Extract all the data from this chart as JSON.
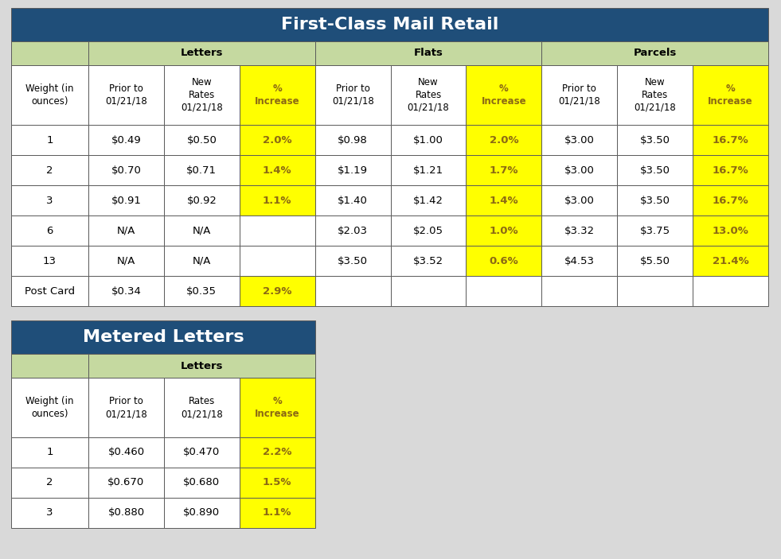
{
  "title1": "First-Class Mail Retail",
  "title2": "Metered Letters",
  "header_bg": "#1F4E79",
  "header_text_color": "#FFFFFF",
  "subheader_bg": "#C5D9A0",
  "yellow_bg": "#FFFF00",
  "yellow_text": "#8B6914",
  "white_bg": "#FFFFFF",
  "outer_bg": "#D9D9D9",
  "border_color": "#5A5A5A",
  "table1_data": [
    [
      "1",
      "$0.49",
      "$0.50",
      "2.0%",
      "$0.98",
      "$1.00",
      "2.0%",
      "$3.00",
      "$3.50",
      "16.7%"
    ],
    [
      "2",
      "$0.70",
      "$0.71",
      "1.4%",
      "$1.19",
      "$1.21",
      "1.7%",
      "$3.00",
      "$3.50",
      "16.7%"
    ],
    [
      "3",
      "$0.91",
      "$0.92",
      "1.1%",
      "$1.40",
      "$1.42",
      "1.4%",
      "$3.00",
      "$3.50",
      "16.7%"
    ],
    [
      "6",
      "N/A",
      "N/A",
      "",
      "$2.03",
      "$2.05",
      "1.0%",
      "$3.32",
      "$3.75",
      "13.0%"
    ],
    [
      "13",
      "N/A",
      "N/A",
      "",
      "$3.50",
      "$3.52",
      "0.6%",
      "$4.53",
      "$5.50",
      "21.4%"
    ],
    [
      "Post Card",
      "$0.34",
      "$0.35",
      "2.9%",
      "",
      "",
      "",
      "",
      "",
      ""
    ]
  ],
  "table2_data": [
    [
      "1",
      "$0.460",
      "$0.470",
      "2.2%"
    ],
    [
      "2",
      "$0.670",
      "$0.680",
      "1.5%"
    ],
    [
      "3",
      "$0.880",
      "$0.890",
      "1.1%"
    ]
  ],
  "figw": 9.81,
  "figh": 7.03,
  "dpi": 100
}
